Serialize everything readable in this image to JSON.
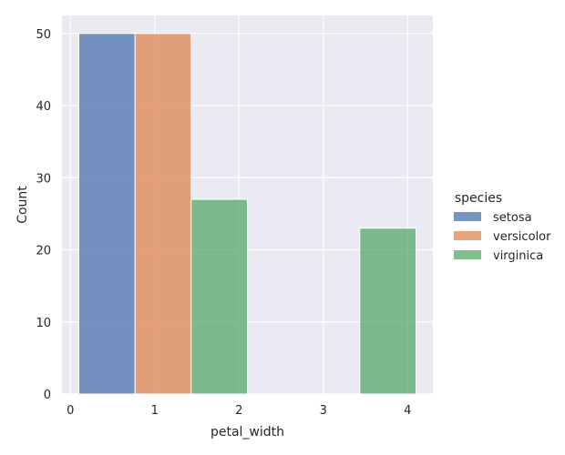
{
  "chart_data": {
    "type": "bar",
    "xlabel": "petal_width",
    "ylabel": "Count",
    "xlim": [
      -0.1,
      4.3
    ],
    "ylim": [
      0,
      52.5
    ],
    "xticks": [
      "0",
      "1",
      "2",
      "3",
      "4"
    ],
    "yticks": [
      "0",
      "10",
      "20",
      "30",
      "40",
      "50"
    ],
    "grid": true,
    "legend": {
      "title": "species",
      "position": "right",
      "entries": [
        "setosa",
        "versicolor",
        "virginica"
      ]
    },
    "colors": {
      "setosa": "#4c72b0",
      "versicolor": "#dd8452",
      "virginica": "#55a868",
      "background": "#eaeaf2",
      "grid": "#ffffff"
    },
    "series": [
      {
        "name": "setosa",
        "bars": [
          {
            "x0": 0.1,
            "x1": 0.767,
            "count": 50
          }
        ]
      },
      {
        "name": "versicolor",
        "bars": [
          {
            "x0": 0.767,
            "x1": 1.433,
            "count": 50
          }
        ]
      },
      {
        "name": "virginica",
        "bars": [
          {
            "x0": 1.433,
            "x1": 2.1,
            "count": 27
          },
          {
            "x0": 3.433,
            "x1": 4.1,
            "count": 23
          }
        ]
      }
    ]
  }
}
